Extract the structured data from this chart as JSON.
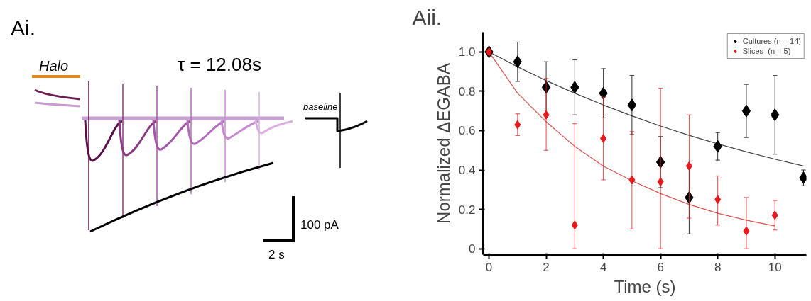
{
  "chart_data": [
    {
      "type": "other",
      "title": "Ai.",
      "annotations": [
        "Halo",
        "τ = 12.08s",
        "baseline",
        "100 pA",
        "2 s"
      ]
    },
    {
      "type": "scatter",
      "title": "Aii.",
      "xlabel": "Time (s)",
      "ylabel": "Normalized ΔEGABA",
      "xlim": [
        -0.2,
        11.1
      ],
      "ylim": [
        -0.03,
        1.1
      ],
      "xticks": [
        0,
        2,
        4,
        6,
        8,
        10
      ],
      "yticks": [
        {
          "value": 0,
          "label": "0"
        },
        {
          "value": 0.2,
          "label": "0.2"
        },
        {
          "value": 0.4,
          "label": "0.4"
        },
        {
          "value": 0.6,
          "label": "0.6"
        },
        {
          "value": 0.8,
          "label": "0.8"
        },
        {
          "value": 1.0,
          "label": "1.0"
        }
      ],
      "legend": "top right",
      "grid": false,
      "series": [
        {
          "type": "line",
          "color": "#444444",
          "x": [
            0,
            1,
            2,
            3,
            4,
            5,
            6,
            7,
            8,
            9,
            10,
            11
          ],
          "values": [
            1.0,
            0.924,
            0.854,
            0.79,
            0.73,
            0.675,
            0.623,
            0.576,
            0.533,
            0.492,
            0.455,
            0.42
          ]
        },
        {
          "type": "line",
          "color": "#d9534f",
          "x": [
            0,
            1,
            2,
            3,
            4,
            5,
            6,
            7,
            8,
            9,
            10
          ],
          "values": [
            1.0,
            0.79,
            0.645,
            0.52,
            0.42,
            0.345,
            0.28,
            0.225,
            0.18,
            0.145,
            0.115
          ]
        },
        {
          "name": "Cultures (n = 14)",
          "color": "#000000",
          "marker": "diamond",
          "x": [
            0,
            1,
            2,
            3,
            4,
            5,
            6,
            7,
            8,
            9,
            10,
            11
          ],
          "values": [
            1.0,
            0.95,
            0.82,
            0.82,
            0.79,
            0.73,
            0.44,
            0.26,
            0.52,
            0.7,
            0.68,
            0.36
          ],
          "errors": [
            null,
            0.1,
            0.13,
            0.14,
            0.125,
            0.15,
            0.13,
            0.185,
            0.07,
            0.135,
            0.2,
            0.04
          ]
        },
        {
          "name": "Slices  (n = 5)",
          "color": "#e8191c",
          "marker": "diamond",
          "x": [
            0,
            1,
            2,
            3,
            4,
            5,
            6,
            7,
            8,
            9,
            10
          ],
          "values": [
            1.0,
            0.63,
            0.68,
            0.12,
            0.56,
            0.35,
            0.34,
            0.42,
            0.25,
            0.09,
            0.17
          ],
          "errors": [
            null,
            [
              0.575,
              0.685
            ],
            [
              0.5,
              0.865
            ],
            [
              0.0,
              0.635
            ],
            [
              0.35,
              0.77
            ],
            [
              0.1,
              0.595
            ],
            [
              0.0,
              0.815
            ],
            [
              0.155,
              0.68
            ],
            [
              0.12,
              0.37
            ],
            [
              0.0,
              0.26
            ],
            [
              0.095,
              0.245
            ]
          ]
        }
      ]
    }
  ]
}
